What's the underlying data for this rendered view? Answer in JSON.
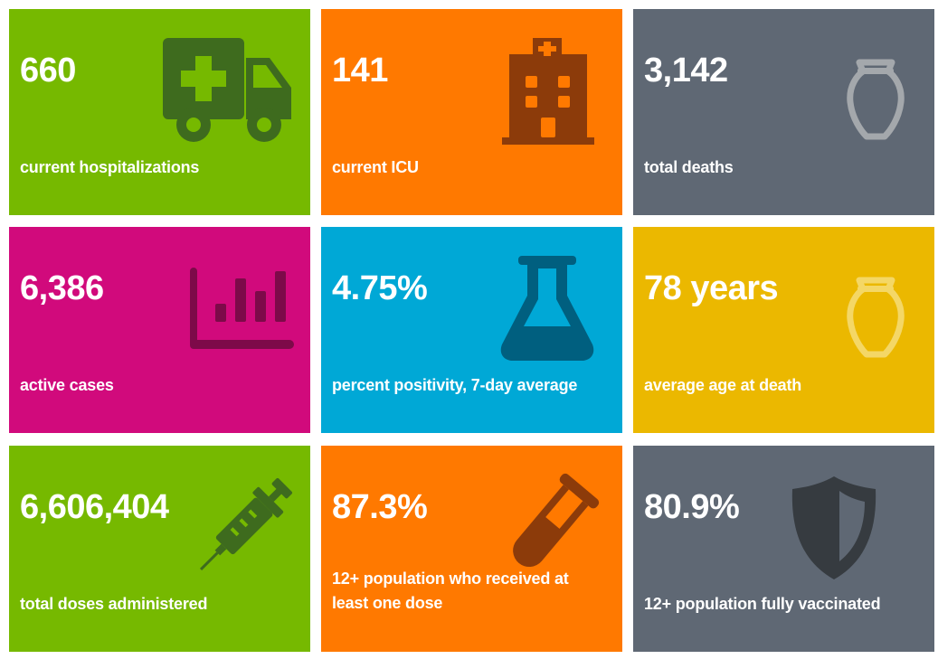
{
  "colors": {
    "green": "#76b900",
    "orange": "#ff7900",
    "gray": "#5f6874",
    "magenta": "#d10a7c",
    "blue": "#00a8d6",
    "yellow": "#ebb800"
  },
  "tiles": [
    {
      "value": "660",
      "label": "current hospitalizations",
      "color": "green",
      "icon": "ambulance-icon"
    },
    {
      "value": "141",
      "label": "current ICU",
      "color": "orange",
      "icon": "hospital-icon"
    },
    {
      "value": "3,142",
      "label": "total deaths",
      "color": "gray",
      "icon": "urn-icon"
    },
    {
      "value": "6,386",
      "label": "active cases",
      "color": "magenta",
      "icon": "bar-chart-icon"
    },
    {
      "value": "4.75%",
      "label": "percent positivity, 7-day average",
      "color": "blue",
      "icon": "flask-icon"
    },
    {
      "value": "78 years",
      "label": "average age at death",
      "color": "yellow",
      "icon": "urn-icon"
    },
    {
      "value": "6,606,404",
      "label": "total doses administered",
      "color": "green",
      "icon": "syringe-icon"
    },
    {
      "value": "87.3%",
      "label": "12+ population who received at least one dose",
      "color": "orange",
      "icon": "test-tube-icon"
    },
    {
      "value": "80.9%",
      "label": "12+ population fully vaccinated",
      "color": "gray",
      "icon": "shield-icon"
    }
  ]
}
